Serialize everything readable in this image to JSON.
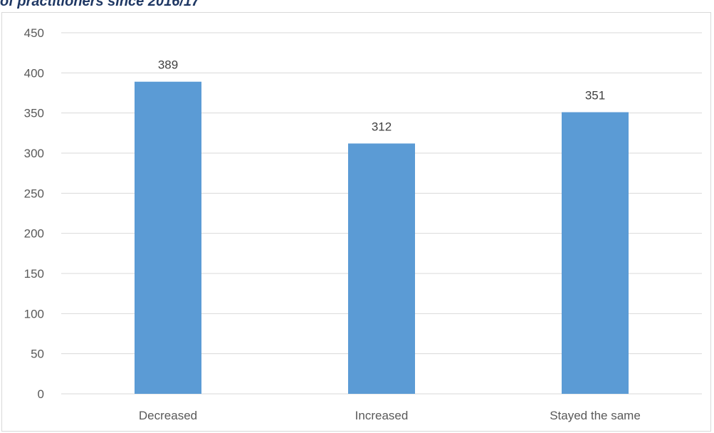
{
  "caption": "of practitioners since 2016/17",
  "chart_data": {
    "type": "bar",
    "title": "",
    "xlabel": "",
    "ylabel": "",
    "categories": [
      "Decreased",
      "Increased",
      "Stayed the same"
    ],
    "values": [
      389,
      312,
      351
    ],
    "ylim": [
      0,
      450
    ],
    "yticks": [
      0,
      50,
      100,
      150,
      200,
      250,
      300,
      350,
      400,
      450
    ],
    "grid": true,
    "legend": "none",
    "data_labels": true,
    "bar_color": "#5b9bd5",
    "grid_color": "#d9d9d9"
  }
}
